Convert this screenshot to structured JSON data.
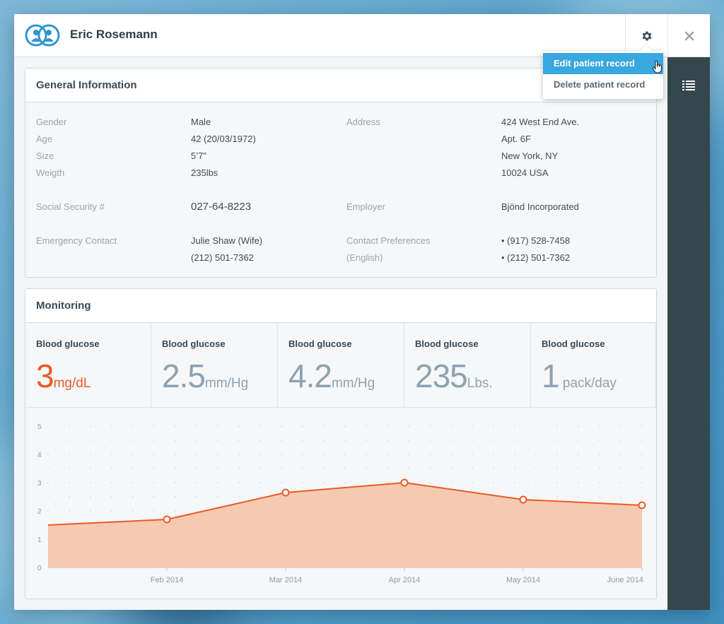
{
  "patient": {
    "name": "Eric Rosemann"
  },
  "menu": {
    "items": [
      {
        "label": "Edit patient record"
      },
      {
        "label": "Delete patient record"
      }
    ]
  },
  "general": {
    "title": "General Information",
    "gender_label": "Gender",
    "gender": "Male",
    "age_label": "Age",
    "age": "42 (20/03/1972)",
    "size_label": "Size",
    "size": "5’7”",
    "weight_label": "Weigth",
    "weight": "235lbs",
    "address_label": "Address",
    "address": [
      "424 West End Ave.",
      "Apt. 6F",
      "New York, NY",
      "10024 USA"
    ],
    "ssn_label": "Social Security #",
    "ssn": "027-64-8223",
    "employer_label": "Employer",
    "employer": "Bjönd Incorporated",
    "emergency_label": "Emergency Contact",
    "emergency": [
      "Julie Shaw (Wife)",
      "(212) 501-7362"
    ],
    "contact_pref_label": "Contact Preferences",
    "contact_pref_sub": "(English)",
    "contact_pref": [
      "• (917) 528-7458",
      "• (212) 501-7362"
    ]
  },
  "monitoring": {
    "title": "Monitoring",
    "metrics": [
      {
        "label": "Blood glucose",
        "value": "3",
        "unit": "mg/dL",
        "alert": true
      },
      {
        "label": "Blood glucose",
        "value": "2.5",
        "unit": "mm/Hg",
        "alert": false
      },
      {
        "label": "Blood glucose",
        "value": "4.2",
        "unit": "mm/Hg",
        "alert": false
      },
      {
        "label": "Blood glucose",
        "value": "235",
        "unit": "Lbs.",
        "alert": false
      },
      {
        "label": "Blood glucose",
        "value": "1",
        "unit": " pack/day",
        "alert": false
      }
    ]
  },
  "colors": {
    "accent": "#39a8e0",
    "alert": "#ea5a26",
    "area_fill": "#f5c4a8",
    "sidebar": "#34474d"
  },
  "icons": {
    "logo": "patients-logo-icon",
    "settings": "gear-icon",
    "close": "close-icon",
    "list": "list-icon",
    "cursor": "hand-cursor-icon"
  },
  "chart_data": {
    "type": "area",
    "x": [
      "",
      "Feb 2014",
      "Mar 2014",
      "Apr 2014",
      "May 2014",
      "June 2014"
    ],
    "series": [
      {
        "values": [
          1.5,
          1.7,
          2.65,
          3.0,
          2.4,
          2.2
        ]
      }
    ],
    "yticks": [
      "0",
      "1",
      "2",
      "3",
      "4",
      "5"
    ],
    "ylim": [
      0,
      5
    ],
    "xlabel": "",
    "ylabel": "",
    "grid": true
  }
}
